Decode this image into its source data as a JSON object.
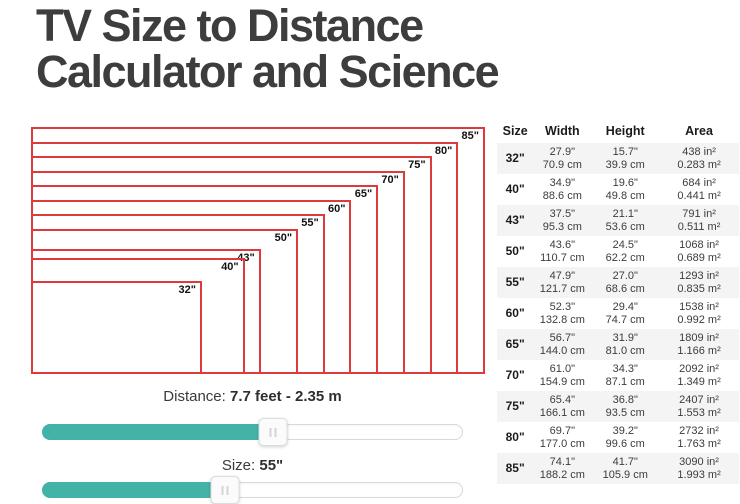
{
  "title": {
    "line1": "TV Size to Distance",
    "line2": "Calculator and Science"
  },
  "diagram": {
    "max_size": 85,
    "tvs": [
      {
        "size": 85,
        "label": "85\""
      },
      {
        "size": 80,
        "label": "80\""
      },
      {
        "size": 75,
        "label": "75\""
      },
      {
        "size": 70,
        "label": "70\""
      },
      {
        "size": 65,
        "label": "65\""
      },
      {
        "size": 60,
        "label": "60\""
      },
      {
        "size": 55,
        "label": "55\""
      },
      {
        "size": 50,
        "label": "50\""
      },
      {
        "size": 43,
        "label": "43\""
      },
      {
        "size": 40,
        "label": "40\""
      },
      {
        "size": 32,
        "label": "32\""
      }
    ]
  },
  "table": {
    "headers": [
      "Size",
      "Width",
      "Height",
      "Area"
    ],
    "rows": [
      {
        "size": "32\"",
        "width_in": "27.9\"",
        "width_cm": "70.9 cm",
        "height_in": "15.7\"",
        "height_cm": "39.9 cm",
        "area_in": "438 in²",
        "area_m": "0.283 m²"
      },
      {
        "size": "40\"",
        "width_in": "34.9\"",
        "width_cm": "88.6 cm",
        "height_in": "19.6\"",
        "height_cm": "49.8 cm",
        "area_in": "684 in²",
        "area_m": "0.441 m²"
      },
      {
        "size": "43\"",
        "width_in": "37.5\"",
        "width_cm": "95.3 cm",
        "height_in": "21.1\"",
        "height_cm": "53.6 cm",
        "area_in": "791 in²",
        "area_m": "0.511 m²"
      },
      {
        "size": "50\"",
        "width_in": "43.6\"",
        "width_cm": "110.7 cm",
        "height_in": "24.5\"",
        "height_cm": "62.2 cm",
        "area_in": "1068 in²",
        "area_m": "0.689 m²"
      },
      {
        "size": "55\"",
        "width_in": "47.9\"",
        "width_cm": "121.7 cm",
        "height_in": "27.0\"",
        "height_cm": "68.6 cm",
        "area_in": "1293 in²",
        "area_m": "0.835 m²"
      },
      {
        "size": "60\"",
        "width_in": "52.3\"",
        "width_cm": "132.8 cm",
        "height_in": "29.4\"",
        "height_cm": "74.7 cm",
        "area_in": "1538 in²",
        "area_m": "0.992 m²"
      },
      {
        "size": "65\"",
        "width_in": "56.7\"",
        "width_cm": "144.0 cm",
        "height_in": "31.9\"",
        "height_cm": "81.0 cm",
        "area_in": "1809 in²",
        "area_m": "1.166 m²"
      },
      {
        "size": "70\"",
        "width_in": "61.0\"",
        "width_cm": "154.9 cm",
        "height_in": "34.3\"",
        "height_cm": "87.1 cm",
        "area_in": "2092 in²",
        "area_m": "1.349 m²"
      },
      {
        "size": "75\"",
        "width_in": "65.4\"",
        "width_cm": "166.1 cm",
        "height_in": "36.8\"",
        "height_cm": "93.5 cm",
        "area_in": "2407 in²",
        "area_m": "1.553 m²"
      },
      {
        "size": "80\"",
        "width_in": "69.7\"",
        "width_cm": "177.0 cm",
        "height_in": "39.2\"",
        "height_cm": "99.6 cm",
        "area_in": "2732 in²",
        "area_m": "1.763 m²"
      },
      {
        "size": "85\"",
        "width_in": "74.1\"",
        "width_cm": "188.2 cm",
        "height_in": "41.7\"",
        "height_cm": "105.9 cm",
        "area_in": "3090 in²",
        "area_m": "1.993 m²"
      }
    ]
  },
  "controls": {
    "distance": {
      "label": "Distance:",
      "value": "7.7 feet - 2.35 m",
      "percent": 55
    },
    "size": {
      "label": "Size:",
      "value": "55\"",
      "percent": 43.5
    }
  },
  "colors": {
    "accent_teal": "#43b3a8",
    "diagram_red": "#dd3b3b"
  }
}
